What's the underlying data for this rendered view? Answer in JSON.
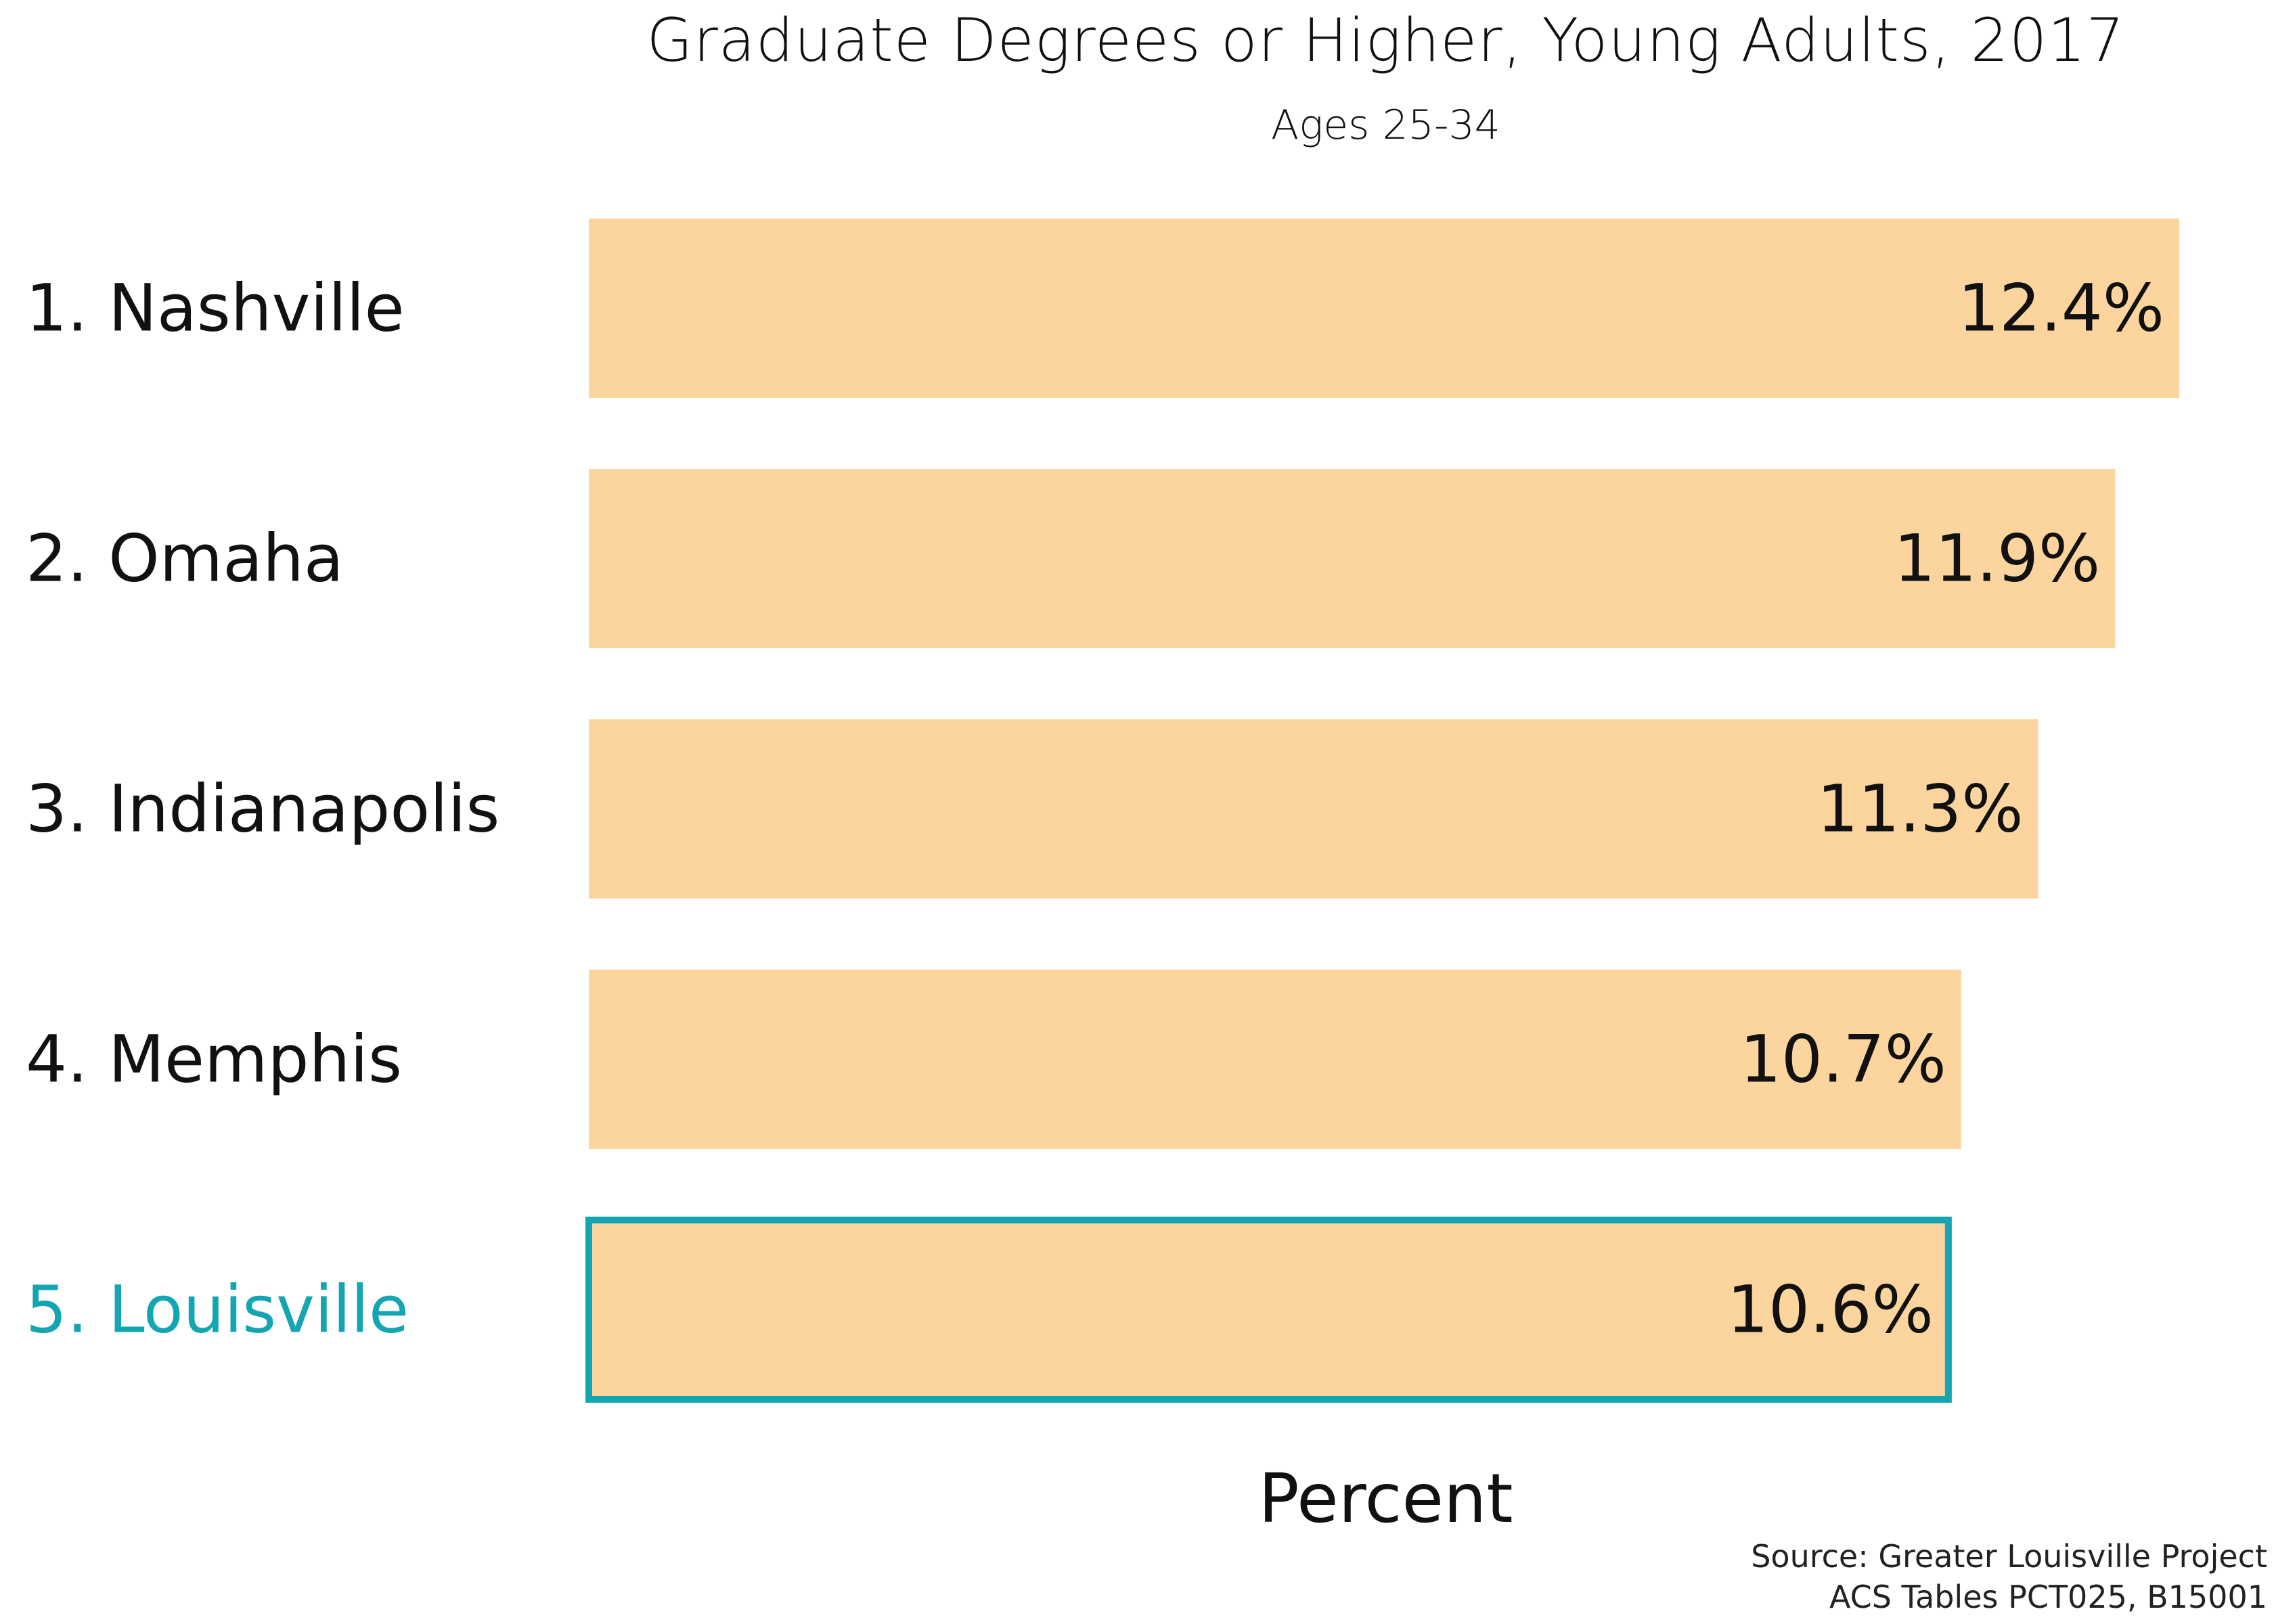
{
  "colors": {
    "bar_fill": "#FCD59E",
    "highlight": "#14A5B3",
    "text": "#111111"
  },
  "chart_data": {
    "type": "bar",
    "orientation": "horizontal",
    "title": "Graduate Degrees or Higher, Young Adults, 2017",
    "subtitle": "Ages 25-34",
    "xlabel": "Percent",
    "ylabel": "",
    "categories": [
      "1. Nashville",
      "2. Omaha",
      "3. Indianapolis",
      "4. Memphis",
      "5. Louisville"
    ],
    "values": [
      12.4,
      11.9,
      11.3,
      10.7,
      10.6
    ],
    "value_labels": [
      "12.4%",
      "11.9%",
      "11.3%",
      "10.7%",
      "10.6%"
    ],
    "highlight": "5. Louisville",
    "xlim": [
      0,
      12.4
    ],
    "grid": false,
    "legend": "none"
  },
  "source": {
    "line1": "Source: Greater Louisville Project",
    "line2": "ACS Tables PCT025, B15001"
  }
}
